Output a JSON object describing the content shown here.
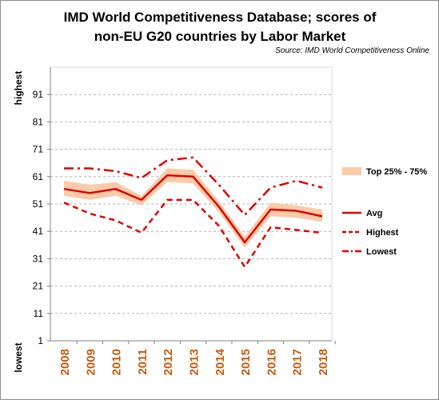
{
  "title_line1": "IMD World Competitiveness Database; scores of",
  "title_line2": "non-EU G20 countries by Labor Market",
  "source": "Source: IMD World Competitiveness Online",
  "chart_data": {
    "type": "line",
    "title": "IMD World Competitiveness Database; scores of non-EU G20 countries by Labor Market",
    "x": [
      "2008",
      "2009",
      "2010",
      "2011",
      "2012",
      "2013",
      "2014",
      "2015",
      "2016",
      "2017",
      "2018"
    ],
    "ylim": [
      1,
      101
    ],
    "yticks": [
      1,
      11,
      21,
      31,
      41,
      51,
      61,
      71,
      81,
      91
    ],
    "ylabel_top": "highest",
    "ylabel_bottom": "lowest",
    "grid": true,
    "legend_position": "right",
    "band": {
      "name": "Top 25% - 75%",
      "color": "#f9cba8",
      "upper": [
        59.5,
        58,
        59,
        54,
        64,
        63.5,
        52,
        39,
        51.5,
        50.5,
        49
      ],
      "lower": [
        54,
        52.5,
        54,
        50.5,
        59,
        58.5,
        48,
        35,
        46.5,
        46,
        44.5
      ]
    },
    "series": [
      {
        "name": "Avg",
        "style": "solid",
        "color": "#e00000",
        "values": [
          56.5,
          55,
          56.5,
          52.5,
          61.5,
          61,
          50,
          37,
          49,
          48.5,
          46.5
        ]
      },
      {
        "name": "Highest",
        "style": "dashed",
        "color": "#e00000",
        "values": [
          51.5,
          47.5,
          45,
          40.5,
          52.5,
          52.5,
          43,
          28,
          42.5,
          41.5,
          40.5
        ]
      },
      {
        "name": "Lowest",
        "style": "dashdot",
        "color": "#e00000",
        "values": [
          64,
          64,
          63,
          60.5,
          67,
          68,
          58,
          47,
          57,
          59.5,
          57
        ]
      }
    ]
  }
}
